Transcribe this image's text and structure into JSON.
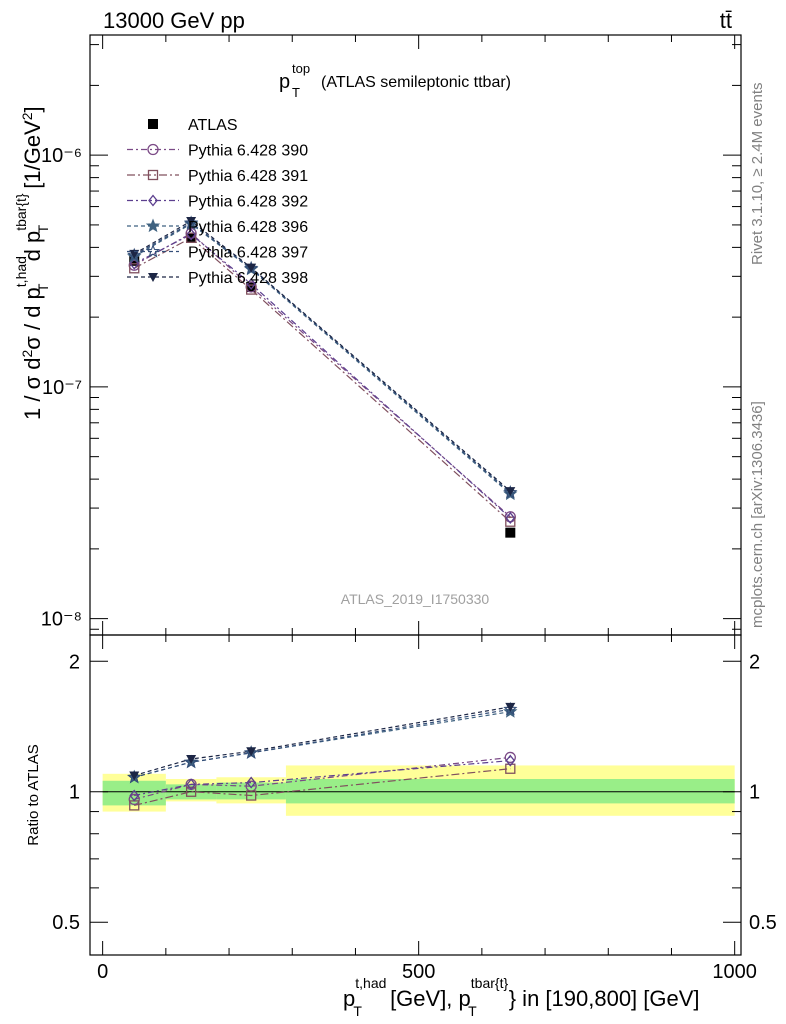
{
  "header": {
    "collision": "13000 GeV pp",
    "process": "tt̄"
  },
  "side_text": {
    "rivet": "Rivet 3.1.10, ≥ 2.4M events",
    "source": "mcplots.cern.ch [arXiv:1306.3436]"
  },
  "chart_data": [
    {
      "type": "line",
      "title_main": "p",
      "title_sub": "T",
      "title_sup": "top",
      "title_rest": "(ATLAS semileptonic ttbar)",
      "watermark": "ATLAS_2019_I1750330",
      "ylabel_text": "1 / σ d²σ / d p_T^{t,had} d p_T^{tbar{t}} [1/GeV²]",
      "yscale": "log",
      "ylim": [
        8.5e-09,
        3.3e-06
      ],
      "xlim": [
        -20,
        1010
      ],
      "ytick_labels": [
        "10⁻⁸",
        "10⁻⁷",
        "10⁻⁶"
      ],
      "x": [
        50,
        140,
        235,
        645
      ],
      "legend_placement": "top-left",
      "series": [
        {
          "name": "ATLAS",
          "color": "#000000",
          "marker": "square-filled",
          "values": [
            3.5e-07,
            4.4e-07,
            2.7e-07,
            2.35e-08
          ]
        },
        {
          "name": "Pythia 6.428 390",
          "color": "#7b4a86",
          "marker": "circle-open",
          "values": [
            3.35e-07,
            4.6e-07,
            2.7e-07,
            2.75e-08
          ]
        },
        {
          "name": "Pythia 6.428 391",
          "color": "#80505e",
          "marker": "square-open",
          "values": [
            3.25e-07,
            4.4e-07,
            2.63e-07,
            2.62e-08
          ]
        },
        {
          "name": "Pythia 6.428 392",
          "color": "#5c3f8e",
          "marker": "diamond-open",
          "values": [
            3.4e-07,
            4.55e-07,
            2.78e-07,
            2.72e-08
          ]
        },
        {
          "name": "Pythia 6.428 396",
          "color": "#3f6280",
          "marker": "star-filled",
          "values": [
            3.65e-07,
            5.05e-07,
            3.22e-07,
            3.45e-08
          ]
        },
        {
          "name": "Pythia 6.428 397",
          "color": "#344e78",
          "marker": "star-open",
          "values": [
            3.7e-07,
            5.1e-07,
            3.25e-07,
            3.5e-08
          ]
        },
        {
          "name": "Pythia 6.428 398",
          "color": "#1c2645",
          "marker": "triangle-down-filled",
          "values": [
            3.75e-07,
            5.2e-07,
            3.27e-07,
            3.55e-08
          ]
        }
      ]
    },
    {
      "type": "line",
      "ylabel": "Ratio to ATLAS",
      "ylim": [
        0.42,
        2.3
      ],
      "yscale": "log",
      "xlim": [
        -20,
        1010
      ],
      "xticks": [
        0,
        500,
        1000
      ],
      "xtick_labels": [
        "0",
        "500",
        "1000"
      ],
      "yticks": [
        0.5,
        1,
        2
      ],
      "ytick_labels": [
        "0.5",
        "1",
        "2"
      ],
      "xlabel_text": "p_T^{t,had} [GeV], p_T^{tbar{t}} in [190,800] [GeV]",
      "x": [
        50,
        140,
        235,
        645
      ],
      "bands": [
        {
          "x": [
            0,
            100
          ],
          "stat": [
            0.93,
            1.06
          ],
          "total": [
            0.9,
            1.1
          ]
        },
        {
          "x": [
            100,
            180
          ],
          "stat": [
            0.96,
            1.04
          ],
          "total": [
            0.95,
            1.07
          ]
        },
        {
          "x": [
            180,
            290
          ],
          "stat": [
            0.96,
            1.05
          ],
          "total": [
            0.94,
            1.08
          ]
        },
        {
          "x": [
            290,
            1000
          ],
          "stat": [
            0.94,
            1.07
          ],
          "total": [
            0.88,
            1.15
          ]
        }
      ],
      "series": [
        {
          "name": "Pythia 6.428 390",
          "values": [
            0.96,
            1.04,
            1.03,
            1.2
          ]
        },
        {
          "name": "Pythia 6.428 391",
          "values": [
            0.93,
            1.0,
            0.98,
            1.13
          ]
        },
        {
          "name": "Pythia 6.428 392",
          "values": [
            0.98,
            1.04,
            1.05,
            1.18
          ]
        },
        {
          "name": "Pythia 6.428 396",
          "values": [
            1.08,
            1.17,
            1.23,
            1.53
          ]
        },
        {
          "name": "Pythia 6.428 397",
          "values": [
            1.08,
            1.17,
            1.23,
            1.55
          ]
        },
        {
          "name": "Pythia 6.428 398",
          "values": [
            1.09,
            1.19,
            1.24,
            1.57
          ]
        }
      ]
    }
  ]
}
